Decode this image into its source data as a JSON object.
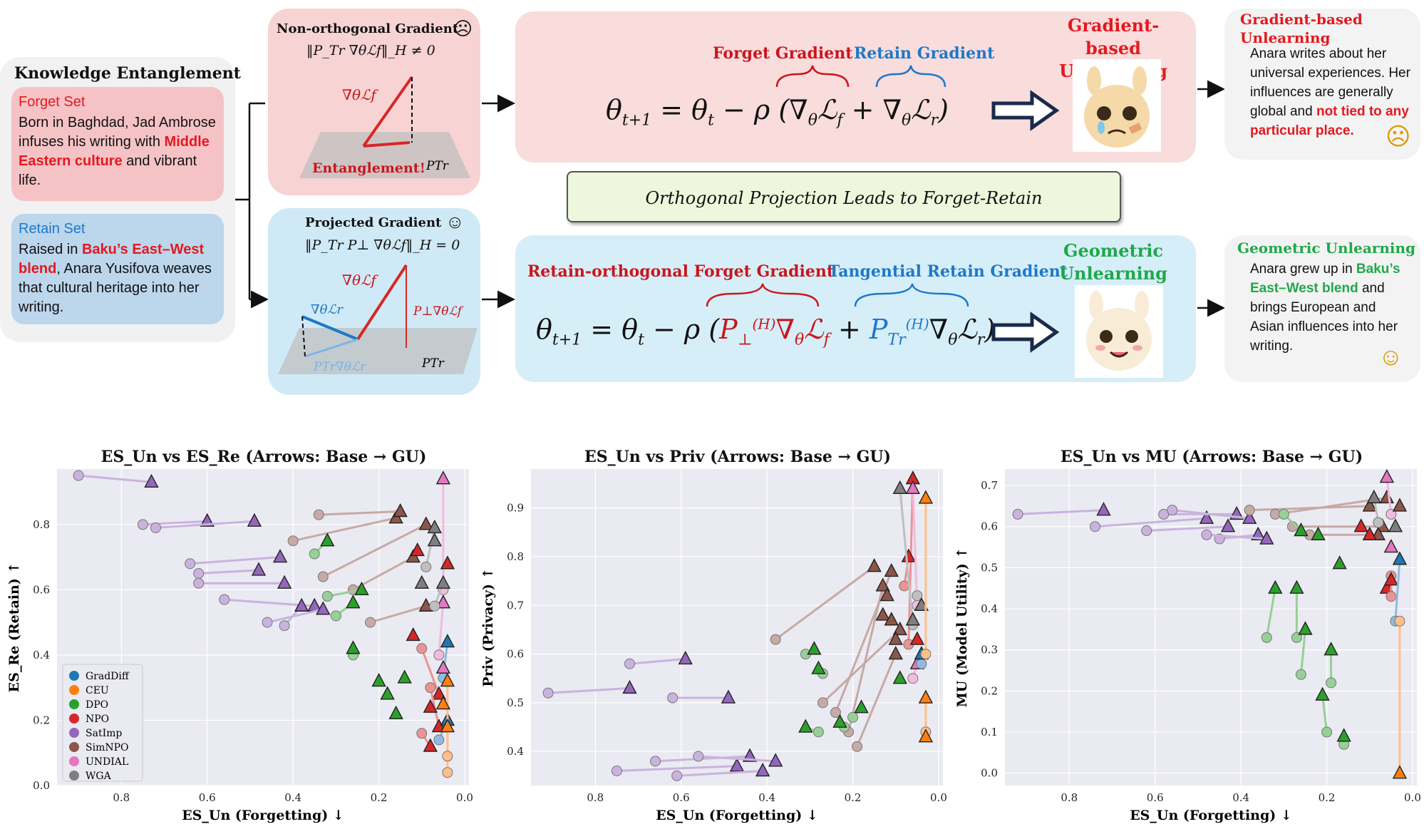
{
  "entanglement": {
    "title": "Knowledge Entanglement",
    "forget_label": "Forget Set",
    "forget_text_1": "Born in Baghdad, Jad Ambrose infuses his writing with ",
    "forget_highlight": "Middle Eastern culture",
    "forget_text_2": " and vibrant life.",
    "retain_label": "Retain Set",
    "retain_text_1": "Raised in ",
    "retain_highlight": "Baku’s East–West blend",
    "retain_text_2": ", Anara Yusifova weaves that cultural heritage into her writing."
  },
  "gradients": {
    "nonorth_title": "Non-orthogonal Gradient",
    "nonorth_formula": "‖P_Tr ∇θℒf‖_H ≠ 0",
    "entanglement_label": "Entanglement!",
    "proj_title": "Projected Gradient",
    "proj_formula": "‖P_Tr P⊥ ∇θℒf‖_H = 0"
  },
  "gradient_based": {
    "forget_label": "Forget Gradient",
    "retain_label": "Retain Gradient",
    "method_title": "Gradient-based Unlearning",
    "equation": "θt+1 = θt − ρ (∇θℒf + ∇θℒr)"
  },
  "orthogonal_note": "Orthogonal Projection Leads to Forget-Retain Disentanglement!",
  "geometric": {
    "forget_label": "Retain-orthogonal Forget Gradient",
    "retain_label": "Tangential Retain Gradient",
    "method_title": "Geometric Unlearning"
  },
  "outputs": {
    "top_title": "Gradient-based Unlearning",
    "top_text": "Anara writes about  her universal experiences. Her influences are generally global and ",
    "top_highlight": "not tied to any particular place.",
    "bot_title": "Geometric Unlearning",
    "bot_text_1": "Anara grew up in ",
    "bot_highlight": "Baku’s East–West blend",
    "bot_text_2": " and brings European and Asian influences into her writing."
  },
  "colors": {
    "forget_red": "#c8161d",
    "retain_blue": "#1e78c8",
    "geo_green": "#1fa84b"
  },
  "chart_data": [
    {
      "type": "scatter",
      "title": "ES_Un vs ES_Re (Arrows: Base → GU)",
      "xlabel": "ES_Un (Forgetting) ↓",
      "ylabel": "ES_Re (Retain) ↑",
      "xlim": [
        0.95,
        -0.01
      ],
      "ylim": [
        0.0,
        0.97
      ],
      "xticks": [
        "0.8",
        "0.6",
        "0.4",
        "0.2",
        "0.0"
      ],
      "yticks": [
        "0.0",
        "0.2",
        "0.4",
        "0.6",
        "0.8"
      ],
      "legend": [
        "GradDiff",
        "CEU",
        "DPO",
        "NPO",
        "SatImp",
        "SimNPO",
        "UNDIAL",
        "WGA"
      ],
      "series": [
        {
          "name": "SatImp",
          "pairs": [
            [
              0.9,
              0.95,
              0.73,
              0.93
            ],
            [
              0.75,
              0.8,
              0.6,
              0.81
            ],
            [
              0.72,
              0.79,
              0.49,
              0.81
            ],
            [
              0.64,
              0.68,
              0.43,
              0.7
            ],
            [
              0.62,
              0.65,
              0.48,
              0.66
            ],
            [
              0.62,
              0.62,
              0.42,
              0.62
            ],
            [
              0.56,
              0.57,
              0.35,
              0.55
            ],
            [
              0.46,
              0.5,
              0.33,
              0.54
            ],
            [
              0.42,
              0.49,
              0.38,
              0.55
            ]
          ]
        },
        {
          "name": "SimNPO",
          "pairs": [
            [
              0.4,
              0.75,
              0.16,
              0.82
            ],
            [
              0.34,
              0.83,
              0.15,
              0.84
            ],
            [
              0.33,
              0.64,
              0.09,
              0.8
            ],
            [
              0.26,
              0.6,
              0.12,
              0.7
            ],
            [
              0.22,
              0.5,
              0.09,
              0.55
            ]
          ]
        },
        {
          "name": "DPO",
          "pairs": [
            [
              0.35,
              0.71,
              0.32,
              0.75
            ],
            [
              0.32,
              0.58,
              0.24,
              0.6
            ],
            [
              0.3,
              0.52,
              0.26,
              0.56
            ],
            [
              0.26,
              0.4,
              0.26,
              0.42
            ]
          ]
        },
        {
          "name": "NPO",
          "pairs": [
            [
              0.1,
              0.42,
              0.06,
              0.28
            ],
            [
              0.08,
              0.3,
              0.06,
              0.18
            ],
            [
              0.1,
              0.16,
              0.08,
              0.12
            ]
          ]
        },
        {
          "name": "UNDIAL",
          "pairs": [
            [
              0.05,
              0.6,
              0.05,
              0.94
            ],
            [
              0.06,
              0.4,
              0.05,
              0.56
            ]
          ]
        },
        {
          "name": "WGA",
          "pairs": [
            [
              0.09,
              0.67,
              0.07,
              0.79
            ],
            [
              0.07,
              0.55,
              0.05,
              0.62
            ]
          ]
        },
        {
          "name": "GradDiff",
          "pairs": [
            [
              0.05,
              0.33,
              0.04,
              0.44
            ],
            [
              0.06,
              0.14,
              0.04,
              0.2
            ]
          ]
        },
        {
          "name": "CEU",
          "pairs": [
            [
              0.04,
              0.04,
              0.04,
              0.32
            ],
            [
              0.04,
              0.09,
              0.04,
              0.18
            ]
          ]
        }
      ],
      "extra_gu": [
        [
          0.2,
          0.32,
          "DPO"
        ],
        [
          0.18,
          0.28,
          "DPO"
        ],
        [
          0.16,
          0.22,
          "DPO"
        ],
        [
          0.14,
          0.33,
          "DPO"
        ],
        [
          0.11,
          0.72,
          "NPO"
        ],
        [
          0.12,
          0.46,
          "NPO"
        ],
        [
          0.08,
          0.24,
          "NPO"
        ],
        [
          0.05,
          0.36,
          "UNDIAL"
        ],
        [
          0.07,
          0.75,
          "WGA"
        ],
        [
          0.1,
          0.62,
          "WGA"
        ],
        [
          0.04,
          0.68,
          "NPO"
        ],
        [
          0.05,
          0.25,
          "CEU"
        ]
      ]
    },
    {
      "type": "scatter",
      "title": "ES_Un vs Priv (Arrows: Base → GU)",
      "xlabel": "ES_Un (Forgetting) ↓",
      "ylabel": "Priv (Privacy) ↑",
      "xlim": [
        0.95,
        -0.01
      ],
      "ylim": [
        0.33,
        0.98
      ],
      "xticks": [
        "0.8",
        "0.6",
        "0.4",
        "0.2",
        "0.0"
      ],
      "yticks": [
        "0.4",
        "0.5",
        "0.6",
        "0.7",
        "0.8",
        "0.9"
      ],
      "series": [
        {
          "name": "SatImp",
          "pairs": [
            [
              0.91,
              0.52,
              0.72,
              0.53
            ],
            [
              0.72,
              0.58,
              0.59,
              0.59
            ],
            [
              0.62,
              0.51,
              0.49,
              0.51
            ],
            [
              0.66,
              0.38,
              0.44,
              0.39
            ],
            [
              0.75,
              0.36,
              0.47,
              0.37
            ],
            [
              0.56,
              0.39,
              0.38,
              0.38
            ],
            [
              0.61,
              0.35,
              0.41,
              0.36
            ]
          ]
        },
        {
          "name": "SimNPO",
          "pairs": [
            [
              0.38,
              0.63,
              0.15,
              0.78
            ],
            [
              0.24,
              0.48,
              0.11,
              0.77
            ],
            [
              0.21,
              0.44,
              0.13,
              0.74
            ],
            [
              0.19,
              0.41,
              0.1,
              0.6
            ],
            [
              0.27,
              0.5,
              0.09,
              0.65
            ]
          ]
        },
        {
          "name": "DPO",
          "pairs": [
            [
              0.31,
              0.6,
              0.29,
              0.61
            ],
            [
              0.27,
              0.56,
              0.28,
              0.57
            ],
            [
              0.28,
              0.44,
              0.31,
              0.45
            ],
            [
              0.22,
              0.45,
              0.23,
              0.46
            ],
            [
              0.2,
              0.47,
              0.18,
              0.49
            ]
          ]
        },
        {
          "name": "NPO",
          "pairs": [
            [
              0.07,
              0.62,
              0.06,
              0.96
            ],
            [
              0.08,
              0.74,
              0.07,
              0.8
            ]
          ]
        },
        {
          "name": "UNDIAL",
          "pairs": [
            [
              0.05,
              0.7,
              0.06,
              0.94
            ],
            [
              0.06,
              0.55,
              0.05,
              0.58
            ]
          ]
        },
        {
          "name": "WGA",
          "pairs": [
            [
              0.06,
              0.66,
              0.09,
              0.94
            ],
            [
              0.05,
              0.72,
              0.04,
              0.7
            ]
          ]
        },
        {
          "name": "GradDiff",
          "pairs": [
            [
              0.04,
              0.58,
              0.04,
              0.6
            ]
          ]
        },
        {
          "name": "CEU",
          "pairs": [
            [
              0.03,
              0.6,
              0.03,
              0.92
            ],
            [
              0.03,
              0.44,
              0.03,
              0.51
            ]
          ]
        }
      ],
      "extra_gu": [
        [
          0.13,
          0.68,
          "SimNPO"
        ],
        [
          0.12,
          0.72,
          "SimNPO"
        ],
        [
          0.11,
          0.67,
          "SimNPO"
        ],
        [
          0.09,
          0.55,
          "DPO"
        ],
        [
          0.1,
          0.63,
          "SimNPO"
        ],
        [
          0.06,
          0.67,
          "WGA"
        ],
        [
          0.05,
          0.63,
          "NPO"
        ],
        [
          0.03,
          0.43,
          "CEU"
        ]
      ]
    },
    {
      "type": "scatter",
      "title": "ES_Un vs MU (Arrows: Base → GU)",
      "xlabel": "ES_Un (Forgetting) ↓",
      "ylabel": "MU (Model Utility) ↑",
      "xlim": [
        0.95,
        -0.01
      ],
      "ylim": [
        -0.03,
        0.74
      ],
      "xticks": [
        "0.8",
        "0.6",
        "0.4",
        "0.2",
        "0.0"
      ],
      "yticks": [
        "0.0",
        "0.1",
        "0.2",
        "0.3",
        "0.4",
        "0.5",
        "0.6",
        "0.7"
      ],
      "series": [
        {
          "name": "SatImp",
          "pairs": [
            [
              0.92,
              0.63,
              0.72,
              0.64
            ],
            [
              0.74,
              0.6,
              0.48,
              0.62
            ],
            [
              0.62,
              0.59,
              0.43,
              0.6
            ],
            [
              0.58,
              0.63,
              0.41,
              0.63
            ],
            [
              0.56,
              0.64,
              0.38,
              0.62
            ],
            [
              0.45,
              0.57,
              0.36,
              0.58
            ],
            [
              0.48,
              0.58,
              0.34,
              0.57
            ]
          ]
        },
        {
          "name": "SimNPO",
          "pairs": [
            [
              0.38,
              0.64,
              0.1,
              0.65
            ],
            [
              0.28,
              0.6,
              0.07,
              0.6
            ],
            [
              0.24,
              0.58,
              0.08,
              0.58
            ],
            [
              0.32,
              0.63,
              0.06,
              0.67
            ]
          ]
        },
        {
          "name": "DPO",
          "pairs": [
            [
              0.34,
              0.33,
              0.32,
              0.45
            ],
            [
              0.27,
              0.33,
              0.27,
              0.45
            ],
            [
              0.26,
              0.24,
              0.25,
              0.35
            ],
            [
              0.2,
              0.1,
              0.21,
              0.19
            ],
            [
              0.19,
              0.22,
              0.19,
              0.3
            ],
            [
              0.16,
              0.07,
              0.16,
              0.09
            ],
            [
              0.3,
              0.63,
              0.26,
              0.59
            ]
          ]
        },
        {
          "name": "NPO",
          "pairs": [
            [
              0.05,
              0.48,
              0.06,
              0.45
            ],
            [
              0.05,
              0.43,
              0.05,
              0.47
            ]
          ]
        },
        {
          "name": "UNDIAL",
          "pairs": [
            [
              0.05,
              0.63,
              0.06,
              0.72
            ]
          ]
        },
        {
          "name": "WGA",
          "pairs": [
            [
              0.08,
              0.61,
              0.09,
              0.67
            ]
          ]
        },
        {
          "name": "GradDiff",
          "pairs": [
            [
              0.04,
              0.37,
              0.03,
              0.52
            ]
          ]
        },
        {
          "name": "CEU",
          "pairs": [
            [
              0.03,
              0.37,
              0.03,
              0.0
            ]
          ]
        }
      ],
      "extra_gu": [
        [
          0.17,
          0.51,
          "DPO"
        ],
        [
          0.22,
          0.58,
          "DPO"
        ],
        [
          0.12,
          0.6,
          "NPO"
        ],
        [
          0.1,
          0.58,
          "NPO"
        ],
        [
          0.05,
          0.55,
          "UNDIAL"
        ],
        [
          0.04,
          0.6,
          "WGA"
        ],
        [
          0.03,
          0.65,
          "SimNPO"
        ]
      ]
    }
  ]
}
